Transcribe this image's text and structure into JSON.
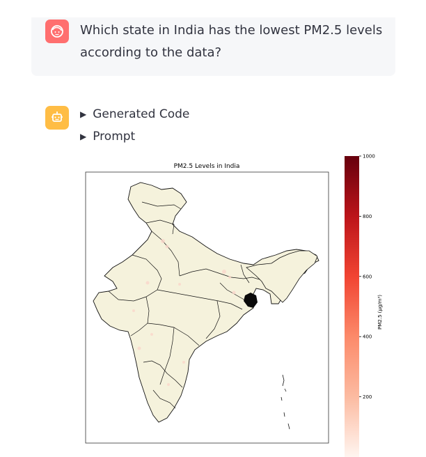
{
  "user_message": {
    "line1": "Which state in India has the lowest PM2.5 levels",
    "line2": "according to the data?"
  },
  "assistant": {
    "expanders": [
      {
        "label": "Generated Code"
      },
      {
        "label": "Prompt"
      }
    ]
  },
  "icons": {
    "user_avatar": "face-icon",
    "assistant_avatar": "robot-icon",
    "expander_arrow": "triangle-right-icon"
  },
  "colors": {
    "user_avatar_bg": "#ff6f6f",
    "assistant_avatar_bg": "#ffbd45",
    "land_fill": "#f5f2dc",
    "colormap_low": "#fff5f0",
    "colormap_high": "#67000d"
  },
  "chart_data": {
    "type": "heatmap",
    "title": "PM2.5 Levels in India",
    "colorbar_label": "PM2.5 (µg/m³)",
    "colorbar_ticks": [
      200,
      400,
      600,
      800,
      1000
    ],
    "colorbar_range": [
      0,
      1000
    ],
    "colormap": "Reds"
  }
}
